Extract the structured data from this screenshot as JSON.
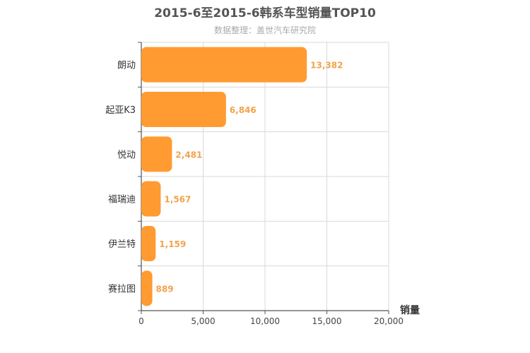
{
  "chart_data": {
    "type": "bar",
    "orientation": "horizontal",
    "title": "2015-6至2015-6韩系车型销量TOP10",
    "subtitle": "数据整理：盖世汽车研究院",
    "xlabel": "销量",
    "ylabel": "",
    "categories": [
      "朗动",
      "起亚K3",
      "悦动",
      "福瑞迪",
      "伊兰特",
      "赛拉图"
    ],
    "values": [
      13382,
      6846,
      2481,
      1567,
      1159,
      889
    ],
    "value_labels": [
      "13,382",
      "6,846",
      "2,481",
      "1,567",
      "1,159",
      "889"
    ],
    "xlim": [
      0,
      20000
    ],
    "xticks": [
      0,
      5000,
      10000,
      15000,
      20000
    ],
    "xtick_labels": [
      "0",
      "5,000",
      "10,000",
      "15,000",
      "20,000"
    ],
    "grid": true,
    "legend": "none",
    "bar_color": "#ff9b30",
    "label_color": "#f2a24a"
  }
}
